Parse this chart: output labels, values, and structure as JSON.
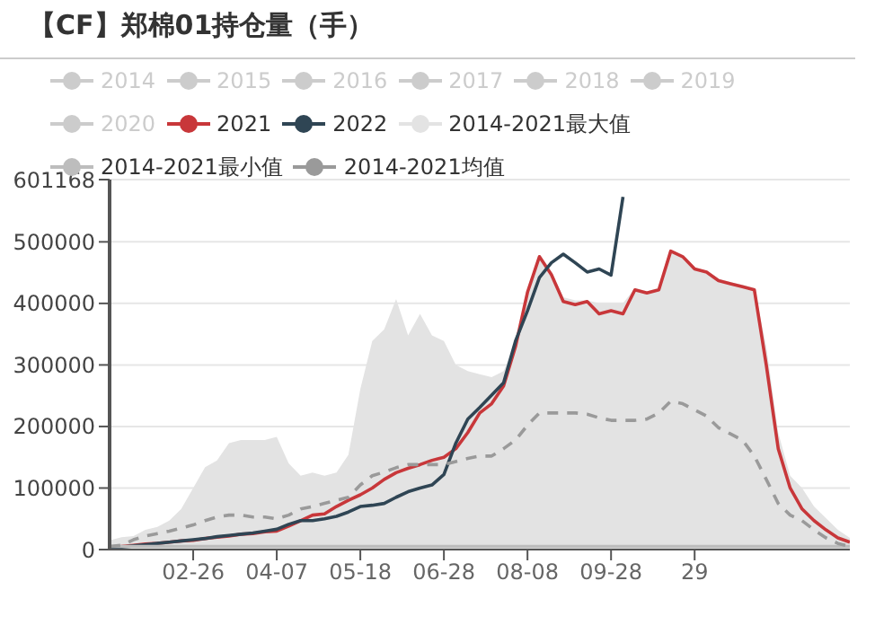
{
  "chart_data": {
    "type": "line",
    "title": "【CF】郑棉01持仓量（手）",
    "categories": [
      null,
      null,
      null,
      null,
      null,
      null,
      null,
      "02-26",
      null,
      null,
      null,
      null,
      null,
      null,
      "04-07",
      null,
      null,
      null,
      null,
      null,
      null,
      "05-18",
      null,
      null,
      null,
      null,
      null,
      null,
      "06-28",
      null,
      null,
      null,
      null,
      null,
      null,
      "08-08",
      null,
      null,
      null,
      null,
      null,
      null,
      "09-28",
      null,
      null,
      null,
      null,
      null,
      null,
      "29",
      null,
      null,
      null,
      null,
      null,
      null,
      null,
      null,
      null,
      null,
      null,
      null,
      null
    ],
    "ylim": [
      0,
      601168
    ],
    "yticks": [
      0,
      100000,
      200000,
      300000,
      400000,
      500000,
      {
        "value": 601168,
        "label": "601168"
      }
    ],
    "grid": "y",
    "legend": "top",
    "marker": "none",
    "series": [
      {
        "name": "2014",
        "color": "#cccccc",
        "values": [
          null,
          null,
          null,
          null,
          null,
          null,
          null,
          null,
          null,
          null,
          null,
          null,
          null,
          null,
          null,
          null,
          null,
          null,
          null,
          null,
          null,
          null,
          null,
          null,
          null,
          null,
          null,
          null,
          null,
          null,
          null,
          null,
          null,
          null,
          null,
          null,
          null,
          null,
          null,
          null,
          null,
          null,
          null,
          null,
          null,
          null,
          null,
          null,
          null,
          null,
          null,
          null,
          null,
          null,
          null,
          null,
          null,
          null,
          null,
          null,
          null,
          null,
          null
        ]
      },
      {
        "name": "2015",
        "color": "#cccccc",
        "values": [
          null,
          null,
          null,
          null,
          null,
          null,
          null,
          null,
          null,
          null,
          null,
          null,
          null,
          null,
          null,
          null,
          null,
          null,
          null,
          null,
          null,
          null,
          null,
          null,
          null,
          null,
          null,
          null,
          null,
          null,
          null,
          null,
          null,
          null,
          null,
          null,
          null,
          null,
          null,
          null,
          null,
          null,
          null,
          null,
          null,
          null,
          null,
          null,
          null,
          null,
          null,
          null,
          null,
          null,
          null,
          null,
          null,
          null,
          null,
          null,
          null,
          null,
          null
        ]
      },
      {
        "name": "2016",
        "color": "#cccccc",
        "values": [
          null,
          null,
          null,
          null,
          null,
          null,
          null,
          null,
          null,
          null,
          null,
          null,
          null,
          null,
          null,
          null,
          null,
          null,
          null,
          null,
          null,
          null,
          null,
          null,
          null,
          null,
          null,
          null,
          null,
          null,
          null,
          null,
          null,
          null,
          null,
          null,
          null,
          null,
          null,
          null,
          null,
          null,
          null,
          null,
          null,
          null,
          null,
          null,
          null,
          null,
          null,
          null,
          null,
          null,
          null,
          null,
          null,
          null,
          null,
          null,
          null,
          null,
          null
        ]
      },
      {
        "name": "2017",
        "color": "#cccccc",
        "values": [
          null,
          null,
          null,
          null,
          null,
          null,
          null,
          null,
          null,
          null,
          null,
          null,
          null,
          null,
          null,
          null,
          null,
          null,
          null,
          null,
          null,
          null,
          null,
          null,
          null,
          null,
          null,
          null,
          null,
          null,
          null,
          null,
          null,
          null,
          null,
          null,
          null,
          null,
          null,
          null,
          null,
          null,
          null,
          null,
          null,
          null,
          null,
          null,
          null,
          null,
          null,
          null,
          null,
          null,
          null,
          null,
          null,
          null,
          null,
          null,
          null,
          null,
          null
        ]
      },
      {
        "name": "2018",
        "color": "#cccccc",
        "values": [
          null,
          null,
          null,
          null,
          null,
          null,
          null,
          null,
          null,
          null,
          null,
          null,
          null,
          null,
          null,
          null,
          null,
          null,
          null,
          null,
          null,
          null,
          null,
          null,
          null,
          null,
          null,
          null,
          null,
          null,
          null,
          null,
          null,
          null,
          null,
          null,
          null,
          null,
          null,
          null,
          null,
          null,
          null,
          null,
          null,
          null,
          null,
          null,
          null,
          null,
          null,
          null,
          null,
          null,
          null,
          null,
          null,
          null,
          null,
          null,
          null,
          null,
          null
        ]
      },
      {
        "name": "2019",
        "color": "#cccccc",
        "values": [
          null,
          null,
          null,
          null,
          null,
          null,
          null,
          null,
          null,
          null,
          null,
          null,
          null,
          null,
          null,
          null,
          null,
          null,
          null,
          null,
          null,
          null,
          null,
          null,
          null,
          null,
          null,
          null,
          null,
          null,
          null,
          null,
          null,
          null,
          null,
          null,
          null,
          null,
          null,
          null,
          null,
          null,
          null,
          null,
          null,
          null,
          null,
          null,
          null,
          null,
          null,
          null,
          null,
          null,
          null,
          null,
          null,
          null,
          null,
          null,
          null,
          null,
          null
        ]
      },
      {
        "name": "2020",
        "color": "#cccccc",
        "values": [
          null,
          null,
          null,
          null,
          null,
          null,
          null,
          null,
          null,
          null,
          null,
          null,
          null,
          null,
          null,
          null,
          null,
          null,
          null,
          null,
          null,
          null,
          null,
          null,
          null,
          null,
          null,
          null,
          null,
          null,
          null,
          null,
          null,
          null,
          null,
          null,
          null,
          null,
          null,
          null,
          null,
          null,
          null,
          null,
          null,
          null,
          null,
          null,
          null,
          null,
          null,
          null,
          null,
          null,
          null,
          null,
          null,
          null,
          null,
          null,
          null,
          null,
          null
        ]
      },
      {
        "name": "2021",
        "color": "#c8373a",
        "values": [
          3000,
          5000,
          7000,
          9000,
          10000,
          12000,
          14000,
          15000,
          18000,
          20000,
          22000,
          25000,
          26000,
          29000,
          30000,
          38000,
          47000,
          56000,
          58000,
          70000,
          80000,
          89000,
          100000,
          114000,
          125000,
          132000,
          138000,
          145000,
          150000,
          164000,
          190000,
          222000,
          237000,
          266000,
          330000,
          418000,
          476000,
          447000,
          403000,
          398000,
          403000,
          383000,
          388000,
          383000,
          422000,
          417000,
          422000,
          485000,
          476000,
          456000,
          451000,
          437000,
          432000,
          427000,
          422000,
          300000,
          164000,
          100000,
          66000,
          47000,
          32000,
          19000,
          12000
        ]
      },
      {
        "name": "2022",
        "color": "#2f4554",
        "values": [
          2000,
          4000,
          6000,
          8000,
          10000,
          12000,
          14000,
          16000,
          18000,
          21000,
          23000,
          25000,
          27000,
          30000,
          33000,
          41000,
          47000,
          47000,
          50000,
          54000,
          61000,
          70000,
          72000,
          75000,
          85000,
          94000,
          100000,
          105000,
          122000,
          173000,
          212000,
          231000,
          251000,
          271000,
          339000,
          388000,
          442000,
          466000,
          480000,
          466000,
          451000,
          456000,
          446000,
          573000,
          null,
          null,
          null,
          null,
          null,
          null,
          null,
          null,
          null,
          null,
          null,
          null,
          null,
          null,
          null,
          null,
          null,
          null,
          null
        ]
      },
      {
        "name": "2014-2021最大值",
        "type": "area",
        "color": "#e3e3e3",
        "values": [
          15000,
          20000,
          22000,
          32000,
          37000,
          47000,
          66000,
          100000,
          134000,
          145000,
          173000,
          178000,
          178000,
          178000,
          183000,
          140000,
          120000,
          125000,
          120000,
          125000,
          154000,
          261000,
          339000,
          358000,
          407000,
          348000,
          383000,
          348000,
          339000,
          300000,
          290000,
          285000,
          280000,
          290000,
          335000,
          420000,
          478000,
          450000,
          410000,
          405000,
          405000,
          400000,
          400000,
          400000,
          425000,
          420000,
          425000,
          487000,
          478000,
          458000,
          453000,
          440000,
          435000,
          430000,
          425000,
          330000,
          190000,
          120000,
          100000,
          70000,
          51000,
          32000,
          19000
        ]
      },
      {
        "name": "2014-2021最小值",
        "color": "#bdbdbd",
        "values": [
          5000,
          5000,
          5000,
          5000,
          5000,
          5000,
          5000,
          5000,
          5000,
          5000,
          5000,
          5000,
          5000,
          5000,
          5000,
          5000,
          5000,
          5000,
          5000,
          5000,
          5000,
          5000,
          5000,
          5000,
          5000,
          5000,
          5000,
          5000,
          5000,
          5000,
          5000,
          5000,
          5000,
          5000,
          5000,
          5000,
          5000,
          5000,
          5000,
          5000,
          5000,
          5000,
          5000,
          5000,
          5000,
          5000,
          5000,
          5000,
          5000,
          5000,
          5000,
          5000,
          5000,
          5000,
          5000,
          5000,
          5000,
          5000,
          5000,
          5000,
          5000,
          5000,
          5000
        ]
      },
      {
        "name": "2014-2021均值",
        "color": "#9a9a9a",
        "line_style": "dashed",
        "values": [
          5000,
          7000,
          16000,
          22000,
          26000,
          30000,
          35000,
          40000,
          47000,
          53000,
          56000,
          56000,
          53000,
          53000,
          50000,
          56000,
          66000,
          70000,
          75000,
          80000,
          85000,
          105000,
          120000,
          126000,
          133000,
          138000,
          138000,
          138000,
          138000,
          143000,
          148000,
          152000,
          152000,
          164000,
          178000,
          202000,
          222000,
          222000,
          222000,
          222000,
          220000,
          214000,
          210000,
          210000,
          210000,
          212000,
          222000,
          241000,
          237000,
          227000,
          217000,
          198000,
          188000,
          178000,
          152000,
          114000,
          75000,
          56000,
          47000,
          32000,
          19000,
          10000,
          5000
        ]
      }
    ]
  }
}
